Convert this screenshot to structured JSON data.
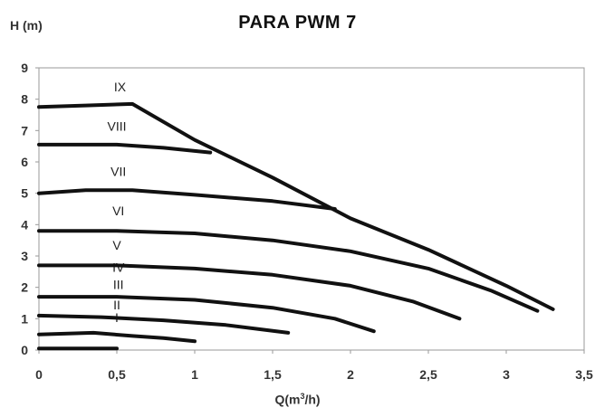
{
  "chart_data": {
    "type": "line",
    "title": "PARA PWM 7",
    "ylabel": "H (m)",
    "xlabel_base": "Q(m",
    "xlabel_sup": "3",
    "xlabel_end": "/h)",
    "xlim": [
      0,
      3.5
    ],
    "ylim": [
      0,
      9
    ],
    "x_ticks": [
      "0",
      "0,5",
      "1",
      "1,5",
      "2",
      "2,5",
      "3",
      "3,5"
    ],
    "y_ticks": [
      "0",
      "1",
      "2",
      "3",
      "4",
      "5",
      "6",
      "7",
      "8",
      "9"
    ],
    "grid": false,
    "line_color": "#111111",
    "series": [
      {
        "name": "I",
        "label_at": [
          0.5,
          0.9
        ],
        "points": [
          [
            0,
            0.05
          ],
          [
            0.5,
            0.05
          ]
        ]
      },
      {
        "name": "II",
        "label_at": [
          0.5,
          1.3
        ],
        "points": [
          [
            0,
            0.5
          ],
          [
            0.35,
            0.55
          ],
          [
            0.6,
            0.45
          ],
          [
            0.8,
            0.38
          ],
          [
            1.0,
            0.28
          ]
        ]
      },
      {
        "name": "III",
        "label_at": [
          0.51,
          1.95
        ],
        "points": [
          [
            0,
            1.1
          ],
          [
            0.4,
            1.05
          ],
          [
            0.8,
            0.95
          ],
          [
            1.2,
            0.8
          ],
          [
            1.6,
            0.55
          ]
        ]
      },
      {
        "name": "IV",
        "label_at": [
          0.51,
          2.5
        ],
        "points": [
          [
            0,
            1.7
          ],
          [
            0.5,
            1.7
          ],
          [
            1.0,
            1.6
          ],
          [
            1.5,
            1.35
          ],
          [
            1.9,
            1.0
          ],
          [
            2.15,
            0.6
          ]
        ]
      },
      {
        "name": "V",
        "label_at": [
          0.5,
          3.2
        ],
        "points": [
          [
            0,
            2.7
          ],
          [
            0.5,
            2.7
          ],
          [
            1.0,
            2.6
          ],
          [
            1.5,
            2.4
          ],
          [
            2.0,
            2.05
          ],
          [
            2.4,
            1.55
          ],
          [
            2.7,
            1.0
          ]
        ]
      },
      {
        "name": "VI",
        "label_at": [
          0.51,
          4.3
        ],
        "points": [
          [
            0,
            3.8
          ],
          [
            0.5,
            3.8
          ],
          [
            1.0,
            3.72
          ],
          [
            1.5,
            3.5
          ],
          [
            2.0,
            3.15
          ],
          [
            2.5,
            2.6
          ],
          [
            2.9,
            1.9
          ],
          [
            3.2,
            1.25
          ]
        ]
      },
      {
        "name": "VII",
        "label_at": [
          0.51,
          5.55
        ],
        "points": [
          [
            0,
            5.0
          ],
          [
            0.3,
            5.1
          ],
          [
            0.6,
            5.1
          ],
          [
            1.0,
            4.95
          ],
          [
            1.5,
            4.75
          ],
          [
            1.9,
            4.5
          ]
        ]
      },
      {
        "name": "VIII",
        "label_at": [
          0.5,
          7.0
        ],
        "points": [
          [
            0,
            6.55
          ],
          [
            0.5,
            6.55
          ],
          [
            0.8,
            6.45
          ],
          [
            1.1,
            6.3
          ]
        ]
      },
      {
        "name": "IX",
        "label_at": [
          0.52,
          8.25
        ],
        "points": [
          [
            0,
            7.75
          ],
          [
            0.3,
            7.8
          ],
          [
            0.6,
            7.85
          ],
          [
            1.0,
            6.7
          ],
          [
            1.5,
            5.5
          ],
          [
            2.0,
            4.2
          ],
          [
            2.5,
            3.2
          ],
          [
            3.0,
            2.05
          ],
          [
            3.3,
            1.3
          ]
        ]
      }
    ]
  }
}
